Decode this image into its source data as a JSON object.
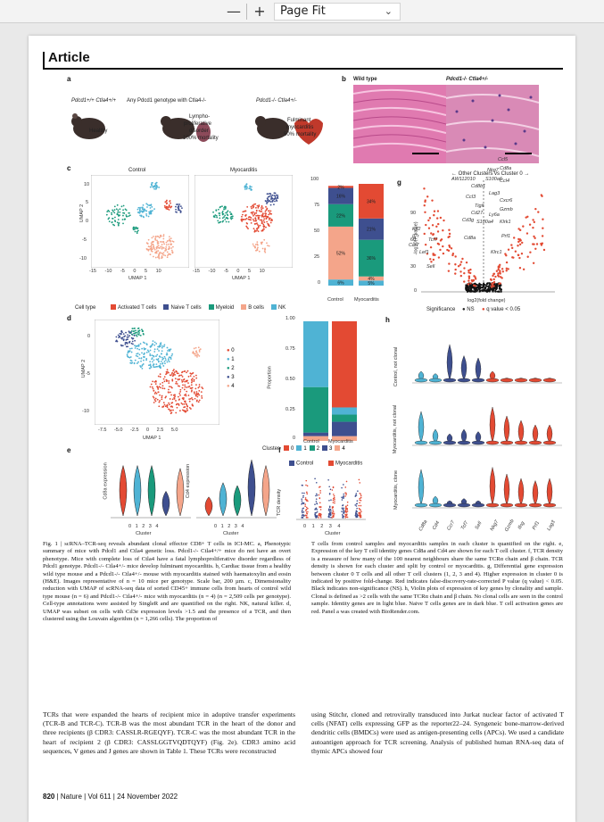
{
  "toolbar": {
    "minus": "—",
    "plus": "+",
    "zoom_value": "Page Fit",
    "chevron": "⌄"
  },
  "page": {
    "section_label": "Article"
  },
  "panels": {
    "a": {
      "label": "a",
      "genotype1": "Pdcd1+/+ Ctla4+/+",
      "genotype2": "Any Pdcd1 genotype with Ctla4-/-",
      "genotype3": "Pdcd1-/- Ctla4+/-",
      "healthy": "Healthy",
      "lymph1": "Lympho-",
      "lymph2": "proliferative",
      "lymph3": "disorder",
      "lymph4": "100% mortality",
      "fulm1": "Fulminant",
      "fulm2": "myocarditis",
      "fulm3": "50% mortality"
    },
    "b": {
      "label": "b",
      "wt": "Wild type",
      "ko": "Pdcd1-/- Ctla4+/-"
    },
    "c": {
      "label": "c",
      "control": "Control",
      "myocarditis": "Myocarditis",
      "xlabel": "UMAP 1",
      "ylabel": "UMAP 2",
      "xticks": [
        "-15",
        "-10",
        "-5",
        "0",
        "5",
        "10"
      ],
      "yticks": [
        "10",
        "5",
        "0",
        "-5",
        "-10"
      ],
      "xticks2": [
        "-15",
        "-10",
        "-5",
        "0",
        "5",
        "10"
      ]
    },
    "c_bar": {
      "yticks": [
        "100",
        "75",
        "50",
        "25",
        "0"
      ],
      "xcats": [
        "Control",
        "Myocarditis"
      ],
      "control_pcts": [
        "2%",
        "16%",
        "22%",
        "52%",
        "6%"
      ],
      "myo_pcts": [
        "34%",
        "21%",
        "36%",
        "4%",
        "5%"
      ]
    },
    "celltype": {
      "title": "Cell type",
      "items": [
        "Activated T cells",
        "Naive T cells",
        "Myeloid",
        "B cells",
        "NK"
      ],
      "colors": [
        "#e34a33",
        "#3e4f8f",
        "#1a9a7c",
        "#f4a58a",
        "#4fb3d4"
      ]
    },
    "d": {
      "label": "d",
      "xlabel": "UMAP 1",
      "ylabel": "UMAP 2",
      "xticks": [
        "-7.5",
        "-5.0",
        "-2.5",
        "0",
        "2.5",
        "5.0"
      ],
      "yticks": [
        "0",
        "-5",
        "-10"
      ],
      "clusters": [
        "0",
        "1",
        "2",
        "3",
        "4"
      ],
      "cluster_colors": [
        "#e34a33",
        "#4fb3d4",
        "#1a9a7c",
        "#3e4f8f",
        "#f4a58a"
      ]
    },
    "d_bar": {
      "ylabel": "Proportion",
      "yticks": [
        "1.00",
        "0.75",
        "0.50",
        "0.25",
        "0"
      ],
      "xcats": [
        "Control",
        "Myocarditis"
      ],
      "legend_title": "Cluster",
      "legend": [
        "0",
        "1",
        "2",
        "3",
        "4"
      ]
    },
    "g": {
      "label": "g",
      "title": "← Other Clusters vs Cluster 0 →",
      "xlabel": "log2(fold change)",
      "ylabel": "-log10(P value)",
      "xticks": [
        "-2",
        "-1",
        "0",
        "1",
        "2"
      ],
      "yticks": [
        "90",
        "60",
        "30",
        "0"
      ],
      "genes": [
        "Ccl5",
        "Nkg7",
        "Cd8a",
        "AW112010",
        "S100a6",
        "Ccl4",
        "Cd8b1",
        "Lag3",
        "Ccl3",
        "Gzmb",
        "Tigit",
        "Klrk1",
        "Prf1",
        "Klrc1",
        "Cd3g",
        "Cd27",
        "Cd8a",
        "S100a4",
        "Ly6a",
        "Cxcr6",
        "Il7r",
        "Ccr7",
        "Tcf7",
        "Lef1",
        "Sell",
        "Klf2"
      ],
      "legend_title": "Significance",
      "legend": [
        "NS",
        "q value < 0.05"
      ]
    },
    "h": {
      "label": "h",
      "rows": [
        "Control, not clonal",
        "Myocarditis, not clonal",
        "Myocarditis, clone"
      ],
      "genes": [
        "Cd8a",
        "Cd4",
        "Ccr7",
        "Tcf7",
        "Sell",
        "Nkg7",
        "Gzmb",
        "Ifng",
        "Prf1",
        "Lag3"
      ],
      "yticks": [
        "4",
        "3",
        "2",
        "1",
        "0"
      ]
    },
    "e": {
      "label": "e",
      "y1": "Cd8a expression",
      "y2": "Cd4 expression",
      "xlabel": "Cluster",
      "clusters": [
        "0",
        "1",
        "2",
        "3",
        "4"
      ],
      "yticks1": [
        "3",
        "2",
        "1",
        "0",
        "-1"
      ],
      "yticks2": [
        "4",
        "3",
        "2",
        "1",
        "0",
        "-1"
      ]
    },
    "f": {
      "label": "f",
      "legend": [
        "Control",
        "Myocarditis"
      ],
      "ylabel": "TCR density",
      "xlabel": "Cluster",
      "clusters": [
        "0",
        "1",
        "2",
        "3",
        "4"
      ]
    }
  },
  "caption_left": "Fig. 1 | scRNA–TCR-seq reveals abundant clonal effector CD8+ T cells in ICI-MC. a, Phenotypic summary of mice with Pdcd1 and Ctla4 genetic loss. Pdcd1-/- Ctla4+/+ mice do not have an overt phenotype. Mice with complete loss of Ctla4 have a fatal lymphoproliferative disorder regardless of Pdcd1 genotype. Pdcd1-/- Ctla4+/- mice develop fulminant myocarditis. b, Cardiac tissue from a healthy wild type mouse and a Pdcd1-/- Ctla4+/- mouse with myocarditis stained with haematoxylin and eosin (H&E). Images representative of n = 10 mice per genotype. Scale bar, 200 µm. c, Dimensionality reduction with UMAP of scRNA-seq data of sorted CD45+ immune cells from hearts of control wild type mouse (n = 6) and Pdcd1-/- Ctla4+/- mice with myocarditis (n = 4) (n = 2,509 cells per genotype). Cell-type annotations were assisted by SingleR and are quantified on the right. NK, natural killer. d, UMAP was subset on cells with Cd3e expression levels >1.5 and the presence of a TCR, and then clustered using the Louvain algorithm (n = 1,266 cells). The proportion of",
  "caption_right": "T cells from control samples and myocarditis samples in each cluster is quantified on the right. e, Expression of the key T cell identity genes Cd8a and Cd4 are shown for each T cell cluster. f, TCR density is a measure of how many of the 100 nearest neighbours share the same TCRα chain and β chain. TCR density is shown for each cluster and split by control or myocarditis. g, Differential gene expression between cluster 0 T cells and all other T cell clusters (1, 2, 3 and 4). Higher expression in cluster 0 is indicated by positive fold-change. Red indicates false-discovery-rate-corrected P value (q value) < 0.05. Black indicates non-significance (NS). h, Violin plots of expression of key genes by clonality and sample. Clonal is defined as >2 cells with the same TCRα chain and β chain. No clonal cells are seen in the control sample. Identity genes are in light blue. Naive T cells genes are in dark blue. T cell activation genes are red. Panel a was created with BioRender.com.",
  "body_left": "TCRs that were expanded the hearts of recipient mice in adoptive transfer experiments (TCR-B and TCR-C). TCR-B was the most abundant TCR in the heart of the donor and three recipients (β CDR3: CASSLR-RGEQYF). TCR-C was the most abundant TCR in the heart of recipient 2 (β CDR3: CASSLGGTVQDTQYF) (Fig. 2e). CDR3 amino acid sequences, V genes and J genes are shown in Table 1. These TCRs were reconstructed",
  "body_right": "using Stitchr, cloned and retrovirally transduced into Jurkat nuclear factor of activated T cells (NFAT) cells expressing GFP as the reporter22–24. Syngeneic bone-marrow-derived dendritic cells (BMDCs) were used as antigen-presenting cells (APCs).\n    We used a candidate autoantigen approach for TCR screening. Analysis of published human RNA-seq data of thymic APCs showed four",
  "footer": {
    "page_no": "820",
    "journal": "Nature",
    "volume": "Vol 611",
    "date": "24 November 2022"
  }
}
